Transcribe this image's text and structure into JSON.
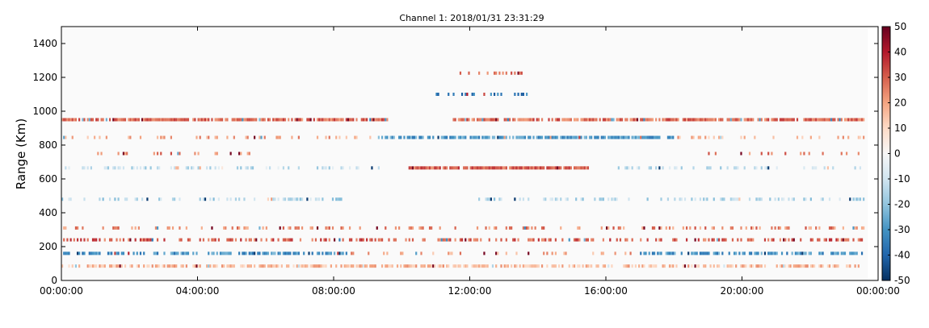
{
  "chart_data": {
    "type": "heatmap",
    "title": "Channel 1: 2018/01/31 23:31:29",
    "xlabel": "",
    "ylabel": "Range (Km)",
    "x_ticks": [
      "00:00:00",
      "04:00:00",
      "08:00:00",
      "12:00:00",
      "16:00:00",
      "20:00:00",
      "00:00:00"
    ],
    "x_tick_hours": [
      0,
      4,
      8,
      12,
      16,
      20,
      24
    ],
    "xlim_hours": [
      0,
      24
    ],
    "y_ticks": [
      0,
      200,
      400,
      600,
      800,
      1000,
      1200,
      1400
    ],
    "ylim": [
      0,
      1500
    ],
    "colorbar": {
      "min": -50,
      "max": 50,
      "ticks": [
        50,
        40,
        30,
        20,
        10,
        0,
        -10,
        -20,
        -30,
        -40,
        -50
      ],
      "colormap": "RdBu_r"
    },
    "data_extent_hours": [
      0,
      23.7
    ],
    "background_value": 0,
    "bands": [
      {
        "range_km": 950,
        "value": 28,
        "intervals_hours": [
          [
            0,
            9.6
          ],
          [
            11.5,
            23.6
          ]
        ],
        "density": 0.85
      },
      {
        "range_km": 845,
        "value": 20,
        "intervals_hours": [
          [
            0,
            9.3
          ]
        ],
        "density": 0.25
      },
      {
        "range_km": 845,
        "value": -28,
        "intervals_hours": [
          [
            9.3,
            18
          ]
        ],
        "density": 0.75
      },
      {
        "range_km": 845,
        "value": 18,
        "intervals_hours": [
          [
            18,
            23.6
          ]
        ],
        "density": 0.25
      },
      {
        "range_km": 750,
        "value": 25,
        "intervals_hours": [
          [
            0.6,
            5.5
          ],
          [
            19,
            23.5
          ]
        ],
        "density": 0.18
      },
      {
        "range_km": 665,
        "value": 30,
        "intervals_hours": [
          [
            10.2,
            15.5
          ]
        ],
        "density": 0.9
      },
      {
        "range_km": 665,
        "value": -12,
        "intervals_hours": [
          [
            0,
            9.5
          ],
          [
            16,
            23.7
          ]
        ],
        "density": 0.3
      },
      {
        "range_km": 480,
        "value": -14,
        "intervals_hours": [
          [
            0,
            8.5
          ],
          [
            12,
            23.6
          ]
        ],
        "density": 0.35
      },
      {
        "range_km": 310,
        "value": 24,
        "intervals_hours": [
          [
            0,
            23.6
          ]
        ],
        "density": 0.3
      },
      {
        "range_km": 240,
        "value": 30,
        "intervals_hours": [
          [
            0,
            23.6
          ]
        ],
        "density": 0.45
      },
      {
        "range_km": 160,
        "value": -30,
        "intervals_hours": [
          [
            0,
            8.5
          ],
          [
            17,
            23.6
          ]
        ],
        "density": 0.6
      },
      {
        "range_km": 160,
        "value": 20,
        "intervals_hours": [
          [
            8.5,
            17
          ]
        ],
        "density": 0.2
      },
      {
        "range_km": 85,
        "value": 16,
        "intervals_hours": [
          [
            0,
            23.6
          ]
        ],
        "density": 0.65
      },
      {
        "range_km": 1225,
        "value": 25,
        "intervals_hours": [
          [
            11.5,
            14
          ]
        ],
        "density": 0.25
      },
      {
        "range_km": 1100,
        "value": -35,
        "intervals_hours": [
          [
            10.8,
            13.8
          ]
        ],
        "density": 0.25
      }
    ]
  }
}
